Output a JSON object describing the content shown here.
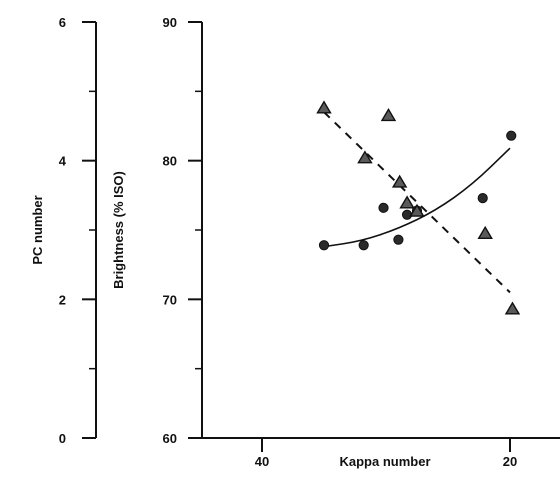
{
  "chart_data": {
    "type": "scatter",
    "title": "",
    "xlabel": "Kappa number",
    "ylabel": "Brightness (% ISO)",
    "y2label": "PC number",
    "x_reversed": true,
    "xlim": [
      50,
      18
    ],
    "ylim": [
      60,
      90
    ],
    "y2lim": [
      0,
      6
    ],
    "xticks": [
      "40",
      "20"
    ],
    "xtick_values": [
      40,
      20
    ],
    "yticks": [
      "60",
      "70",
      "80",
      "90"
    ],
    "ytick_values": [
      60,
      70,
      80,
      90
    ],
    "y2ticks": [
      "0",
      "2",
      "4",
      "6"
    ],
    "y2tick_values": [
      0,
      2,
      4,
      6
    ],
    "grid": false,
    "series": [
      {
        "marker": "circle",
        "axis": "brightness",
        "trend": "solid curve",
        "points": [
          {
            "x": 35.0,
            "y": 73.9
          },
          {
            "x": 31.8,
            "y": 73.9
          },
          {
            "x": 30.2,
            "y": 76.6
          },
          {
            "x": 29.0,
            "y": 74.3
          },
          {
            "x": 28.3,
            "y": 76.1
          },
          {
            "x": 27.5,
            "y": 76.4
          },
          {
            "x": 22.2,
            "y": 77.3
          },
          {
            "x": 19.9,
            "y": 81.8
          }
        ],
        "trendline": [
          {
            "x": 35.0,
            "y": 73.8
          },
          {
            "x": 32.0,
            "y": 74.2
          },
          {
            "x": 29.0,
            "y": 75.1
          },
          {
            "x": 26.0,
            "y": 76.4
          },
          {
            "x": 23.0,
            "y": 78.3
          },
          {
            "x": 20.0,
            "y": 80.9
          }
        ]
      },
      {
        "marker": "triangle",
        "axis": "PC number",
        "trend": "dashed line",
        "points": [
          {
            "x": 35.0,
            "y": 4.77
          },
          {
            "x": 31.7,
            "y": 4.05
          },
          {
            "x": 29.8,
            "y": 4.66
          },
          {
            "x": 28.9,
            "y": 3.7
          },
          {
            "x": 28.3,
            "y": 3.4
          },
          {
            "x": 27.5,
            "y": 3.28
          },
          {
            "x": 22.0,
            "y": 2.96
          },
          {
            "x": 19.8,
            "y": 1.87
          }
        ],
        "trendline": [
          {
            "x": 35.0,
            "y": 4.7
          },
          {
            "x": 20.0,
            "y": 2.1
          }
        ]
      }
    ]
  }
}
